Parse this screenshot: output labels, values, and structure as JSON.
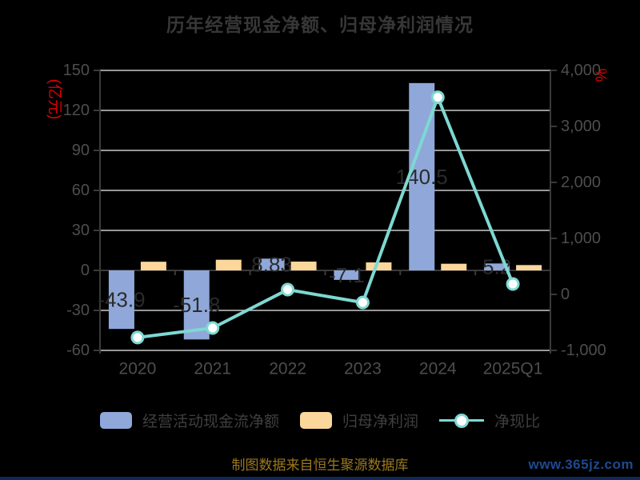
{
  "title": "历年经营现金净额、归母净利润情况",
  "footer_note": "制图数据来自恒生聚源数据库",
  "watermark": "www.365jz.com",
  "colors": {
    "background": "#000000",
    "title_text": "#373737",
    "axis_text": "#4d4d4d",
    "gridline": "#cbcbcb",
    "axis_line": "#3a3a3a",
    "axis_name_red": "#dd0000",
    "bar_blue": "#8FA8D9",
    "bar_orange": "#FBD79B",
    "line_teal": "#7ED8D2",
    "bar_label_text": "#2b2b2b",
    "legend_text": "#3f3f3f",
    "footer_gold": "#9a781e",
    "watermark_blue": "#1d4a8f"
  },
  "legend": {
    "items": [
      {
        "label": "经营活动现金流净额",
        "type": "bar",
        "color": "#8FA8D9"
      },
      {
        "label": "归母净利润",
        "type": "bar",
        "color": "#FBD79B"
      },
      {
        "label": "净现比",
        "type": "line",
        "color": "#7ED8D2"
      }
    ]
  },
  "chart_data": {
    "type": "bar",
    "title": "历年经营现金净额、归母净利润情况",
    "categories": [
      "2020",
      "2021",
      "2022",
      "2023",
      "2024",
      "2025Q1"
    ],
    "series": [
      {
        "name": "经营活动现金流净额",
        "type": "bar",
        "axis": "left",
        "color": "#8FA8D9",
        "values": [
          -43.9,
          -51.8,
          8.83,
          -7.1,
          140.5,
          5.2
        ],
        "labels": [
          "-43.9",
          "-51.8",
          "8.83",
          "-7.1",
          "140.5",
          "5.2"
        ]
      },
      {
        "name": "归母净利润",
        "type": "bar",
        "axis": "left",
        "color": "#FBD79B",
        "values": [
          6.5,
          8,
          6.6,
          6,
          5,
          4
        ]
      },
      {
        "name": "净现比",
        "type": "line",
        "axis": "right",
        "color": "#7ED8D2",
        "values": [
          -770,
          -600,
          85,
          -145,
          3520,
          185
        ]
      }
    ],
    "left_axis": {
      "name": "(亿元)",
      "min": -60,
      "max": 150,
      "ticks": [
        "150",
        "120",
        "90",
        "60",
        "30",
        "0",
        "-30",
        "-60"
      ]
    },
    "right_axis": {
      "name": "%",
      "min": -1000,
      "max": 4000,
      "ticks": [
        "4,000",
        "3,000",
        "2,000",
        "1,000",
        "0",
        "-1,000"
      ]
    },
    "grid": true,
    "legend_position": "bottom"
  }
}
